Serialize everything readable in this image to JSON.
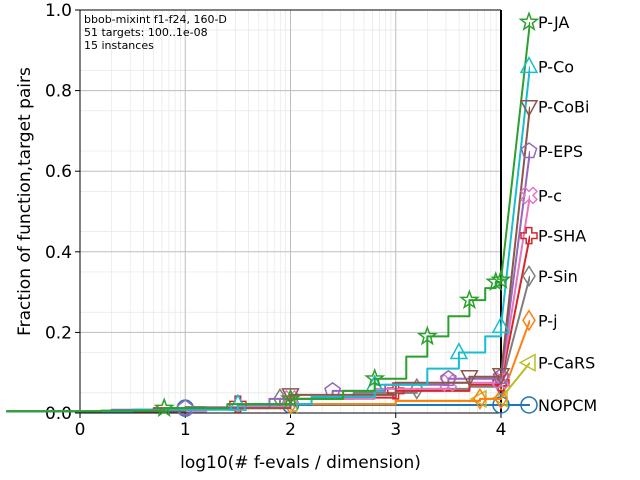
{
  "chart_data": {
    "type": "line",
    "xlabel": "log10(# f-evals / dimension)",
    "ylabel": "Fraction of function,target pairs",
    "xlim": [
      0,
      4
    ],
    "ylim": [
      0,
      1.0
    ],
    "xticks": [
      "0",
      "1",
      "2",
      "3",
      "4"
    ],
    "yticks": [
      "0.0",
      "0.2",
      "0.4",
      "0.6",
      "0.8",
      "1.0"
    ],
    "grid": true,
    "annotations": [
      "bbob-mixint f1-f24, 160-D",
      "51 targets: 100..1e-08",
      "15 instances"
    ],
    "legend_position": "right",
    "series": [
      {
        "name": "P-JA",
        "color": "#2ca02c",
        "marker": "star",
        "end_y": 0.97,
        "points": [
          [
            -0.7,
            0.004
          ],
          [
            0.2,
            0.006
          ],
          [
            0.8,
            0.012
          ],
          [
            1.4,
            0.022
          ],
          [
            2.0,
            0.035
          ],
          [
            2.5,
            0.055
          ],
          [
            2.8,
            0.085
          ],
          [
            3.1,
            0.14
          ],
          [
            3.3,
            0.19
          ],
          [
            3.5,
            0.24
          ],
          [
            3.7,
            0.28
          ],
          [
            3.85,
            0.31
          ],
          [
            3.95,
            0.325
          ],
          [
            4.0,
            0.33
          ]
        ]
      },
      {
        "name": "P-Co",
        "color": "#17becf",
        "marker": "triangle-up",
        "end_y": 0.86,
        "points": [
          [
            -0.7,
            0.004
          ],
          [
            0.5,
            0.008
          ],
          [
            1.5,
            0.022
          ],
          [
            2.2,
            0.04
          ],
          [
            2.8,
            0.07
          ],
          [
            3.3,
            0.11
          ],
          [
            3.6,
            0.15
          ],
          [
            3.85,
            0.19
          ],
          [
            4.0,
            0.215
          ]
        ]
      },
      {
        "name": "P-CoBi",
        "color": "#8c564b",
        "marker": "triangle-down",
        "end_y": 0.76,
        "points": [
          [
            -0.7,
            0.004
          ],
          [
            1.0,
            0.012
          ],
          [
            2.0,
            0.045
          ],
          [
            3.0,
            0.075
          ],
          [
            3.7,
            0.09
          ],
          [
            4.0,
            0.095
          ]
        ]
      },
      {
        "name": "P-EPS",
        "color": "#9467bd",
        "marker": "pentagon",
        "end_y": 0.65,
        "points": [
          [
            -0.7,
            0.004
          ],
          [
            0.3,
            0.008
          ],
          [
            1.0,
            0.012
          ],
          [
            1.8,
            0.035
          ],
          [
            2.4,
            0.055
          ],
          [
            2.9,
            0.07
          ],
          [
            3.5,
            0.085
          ],
          [
            4.0,
            0.09
          ]
        ]
      },
      {
        "name": "P-c",
        "color": "#e377c2",
        "marker": "x-thick",
        "end_y": 0.54,
        "points": [
          [
            -0.7,
            0.004
          ],
          [
            1.2,
            0.015
          ],
          [
            2.0,
            0.035
          ],
          [
            2.8,
            0.06
          ],
          [
            3.5,
            0.075
          ],
          [
            4.0,
            0.08
          ]
        ]
      },
      {
        "name": "P-SHA",
        "color": "#d62728",
        "marker": "plus-thick",
        "end_y": 0.44,
        "points": [
          [
            -0.7,
            0.004
          ],
          [
            0.7,
            0.012
          ],
          [
            1.5,
            0.022
          ],
          [
            2.2,
            0.038
          ],
          [
            3.0,
            0.055
          ],
          [
            3.7,
            0.07
          ],
          [
            4.0,
            0.075
          ]
        ]
      },
      {
        "name": "P-Sin",
        "color": "#7f7f7f",
        "marker": "diamond",
        "end_y": 0.34,
        "points": [
          [
            -0.7,
            0.004
          ],
          [
            1.0,
            0.015
          ],
          [
            1.9,
            0.035
          ],
          [
            2.6,
            0.05
          ],
          [
            3.2,
            0.06
          ],
          [
            3.7,
            0.065
          ],
          [
            4.0,
            0.068
          ]
        ]
      },
      {
        "name": "P-j",
        "color": "#ff7f0e",
        "marker": "diamond",
        "end_y": 0.23,
        "points": [
          [
            -0.7,
            0.004
          ],
          [
            1.0,
            0.012
          ],
          [
            2.0,
            0.022
          ],
          [
            3.0,
            0.03
          ],
          [
            3.8,
            0.035
          ],
          [
            4.0,
            0.036
          ]
        ]
      },
      {
        "name": "P-CaRS",
        "color": "#bcbd22",
        "marker": "triangle-left",
        "end_y": 0.125,
        "points": [
          [
            -0.7,
            0.004
          ],
          [
            1.0,
            0.012
          ],
          [
            2.0,
            0.022
          ],
          [
            3.0,
            0.03
          ],
          [
            3.8,
            0.035
          ],
          [
            4.0,
            0.036
          ]
        ]
      },
      {
        "name": "NOPCM",
        "color": "#1f77b4",
        "marker": "circle",
        "end_y": 0.02,
        "points": [
          [
            -0.7,
            0.004
          ],
          [
            0.5,
            0.008
          ],
          [
            1.0,
            0.012
          ],
          [
            1.5,
            0.016
          ],
          [
            2.0,
            0.02
          ],
          [
            4.0,
            0.02
          ]
        ]
      }
    ]
  }
}
